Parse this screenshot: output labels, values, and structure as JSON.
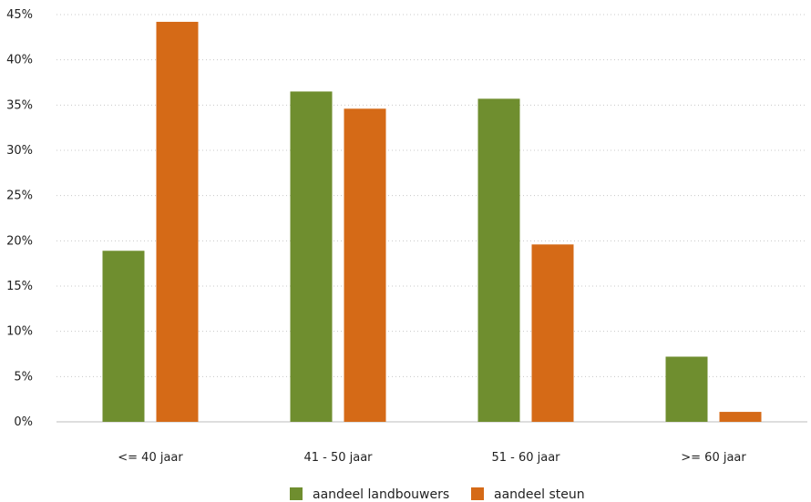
{
  "chart_data": {
    "type": "bar",
    "categories": [
      "<= 40 jaar",
      "41 - 50 jaar",
      "51 - 60 jaar",
      ">= 60 jaar"
    ],
    "series": [
      {
        "name": "aandeel landbouwers",
        "color": "#6f8e2f",
        "values": [
          18.9,
          36.5,
          35.7,
          7.2
        ]
      },
      {
        "name": "aandeel steun",
        "color": "#d56a17",
        "values": [
          44.2,
          34.6,
          19.6,
          1.1
        ]
      }
    ],
    "ylim": [
      0,
      45
    ],
    "y_ticks": [
      0,
      5,
      10,
      15,
      20,
      25,
      30,
      35,
      40,
      45
    ],
    "y_tick_labels": [
      "0%",
      "5%",
      "10%",
      "15%",
      "20%",
      "25%",
      "30%",
      "35%",
      "40%",
      "45%"
    ],
    "grid": true,
    "legend_position": "bottom"
  }
}
